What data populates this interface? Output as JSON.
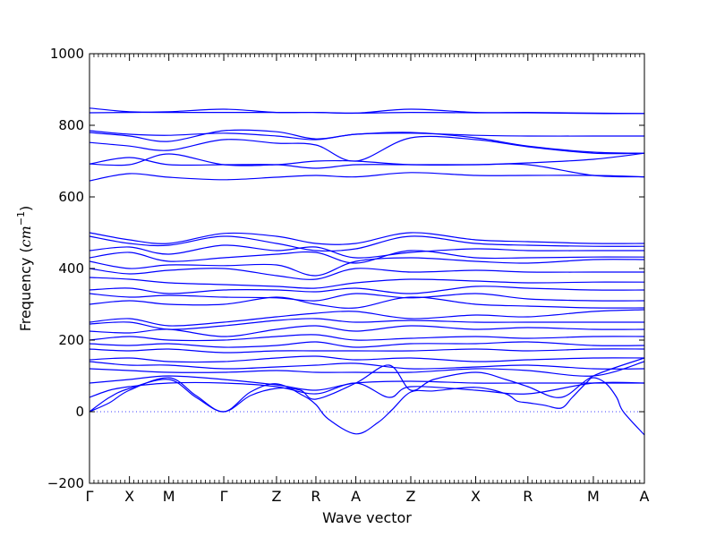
{
  "chart_data": {
    "type": "line",
    "title": "",
    "xlabel": "Wave vector",
    "ylabel": "Frequency",
    "ylabel_unit_main": "cm",
    "ylabel_unit_exp": "−1",
    "ylim": [
      -200,
      1000
    ],
    "yticks": [
      -200,
      0,
      200,
      400,
      600,
      800,
      1000
    ],
    "xlim": [
      0,
      1
    ],
    "xticks": [
      {
        "label": "Γ",
        "x": 0.0
      },
      {
        "label": "X",
        "x": 0.072
      },
      {
        "label": "M",
        "x": 0.143
      },
      {
        "label": "Γ",
        "x": 0.242
      },
      {
        "label": "Z",
        "x": 0.337
      },
      {
        "label": "R",
        "x": 0.408
      },
      {
        "label": "A",
        "x": 0.48
      },
      {
        "label": "Z",
        "x": 0.579
      },
      {
        "label": "X",
        "x": 0.696
      },
      {
        "label": "R",
        "x": 0.79
      },
      {
        "label": "M",
        "x": 0.908
      },
      {
        "label": "A",
        "x": 1.0
      }
    ],
    "zero_line": true,
    "grid": false,
    "series_color": "#0000ff",
    "series": [
      {
        "x": [
          0,
          0.072,
          0.143,
          0.242,
          0.337,
          0.408,
          0.48,
          0.579,
          0.696,
          0.79,
          0.908,
          1
        ],
        "values": [
          848,
          838,
          838,
          845,
          836,
          836,
          834,
          845,
          836,
          836,
          834,
          833
        ]
      },
      {
        "x": [
          0,
          0.072,
          0.143,
          0.242,
          0.337,
          0.408,
          0.48,
          0.579,
          0.696,
          0.79,
          0.908,
          1
        ],
        "values": [
          835,
          836,
          836,
          836,
          836,
          836,
          834,
          836,
          835,
          835,
          833,
          833
        ]
      },
      {
        "x": [
          0,
          0.072,
          0.143,
          0.242,
          0.337,
          0.408,
          0.48,
          0.579,
          0.696,
          0.79,
          0.908,
          1
        ],
        "values": [
          785,
          775,
          772,
          778,
          770,
          760,
          775,
          778,
          772,
          770,
          770,
          770
        ]
      },
      {
        "x": [
          0,
          0.072,
          0.143,
          0.242,
          0.337,
          0.408,
          0.48,
          0.579,
          0.696,
          0.79,
          0.908,
          1
        ],
        "values": [
          780,
          770,
          755,
          785,
          782,
          762,
          775,
          780,
          765,
          742,
          725,
          722
        ]
      },
      {
        "x": [
          0,
          0.072,
          0.143,
          0.242,
          0.337,
          0.408,
          0.48,
          0.579,
          0.696,
          0.79,
          0.908,
          1
        ],
        "values": [
          752,
          742,
          730,
          760,
          750,
          745,
          700,
          765,
          760,
          740,
          722,
          722
        ]
      },
      {
        "x": [
          0,
          0.072,
          0.143,
          0.242,
          0.337,
          0.408,
          0.48,
          0.579,
          0.696,
          0.79,
          0.908,
          1
        ],
        "values": [
          692,
          690,
          720,
          690,
          690,
          700,
          700,
          690,
          690,
          695,
          705,
          722
        ]
      },
      {
        "x": [
          0,
          0.072,
          0.143,
          0.242,
          0.337,
          0.408,
          0.48,
          0.579,
          0.696,
          0.79,
          0.908,
          1
        ],
        "values": [
          692,
          710,
          690,
          690,
          690,
          680,
          690,
          690,
          690,
          690,
          660,
          656
        ]
      },
      {
        "x": [
          0,
          0.072,
          0.143,
          0.242,
          0.337,
          0.408,
          0.48,
          0.579,
          0.696,
          0.79,
          0.908,
          1
        ],
        "values": [
          645,
          665,
          655,
          648,
          655,
          660,
          656,
          668,
          660,
          660,
          660,
          656
        ]
      },
      {
        "x": [
          0,
          0.072,
          0.143,
          0.242,
          0.337,
          0.408,
          0.48,
          0.579,
          0.696,
          0.79,
          0.908,
          1
        ],
        "values": [
          500,
          480,
          470,
          498,
          490,
          470,
          470,
          500,
          480,
          475,
          470,
          470
        ]
      },
      {
        "x": [
          0,
          0.072,
          0.143,
          0.242,
          0.337,
          0.408,
          0.48,
          0.579,
          0.696,
          0.79,
          0.908,
          1
        ],
        "values": [
          490,
          470,
          465,
          490,
          470,
          450,
          455,
          490,
          470,
          465,
          462,
          462
        ]
      },
      {
        "x": [
          0,
          0.072,
          0.143,
          0.242,
          0.337,
          0.408,
          0.48,
          0.579,
          0.696,
          0.79,
          0.908,
          1
        ],
        "values": [
          450,
          460,
          440,
          465,
          450,
          460,
          430,
          445,
          455,
          450,
          450,
          450
        ]
      },
      {
        "x": [
          0,
          0.072,
          0.143,
          0.242,
          0.337,
          0.408,
          0.48,
          0.579,
          0.696,
          0.79,
          0.908,
          1
        ],
        "values": [
          430,
          445,
          420,
          430,
          440,
          445,
          415,
          450,
          430,
          430,
          432,
          432
        ]
      },
      {
        "x": [
          0,
          0.072,
          0.143,
          0.242,
          0.337,
          0.408,
          0.48,
          0.579,
          0.696,
          0.79,
          0.908,
          1
        ],
        "values": [
          420,
          400,
          410,
          408,
          410,
          380,
          420,
          430,
          420,
          415,
          425,
          425
        ]
      },
      {
        "x": [
          0,
          0.072,
          0.143,
          0.242,
          0.337,
          0.408,
          0.48,
          0.579,
          0.696,
          0.79,
          0.908,
          1
        ],
        "values": [
          400,
          385,
          395,
          400,
          380,
          370,
          400,
          390,
          395,
          390,
          390,
          390
        ]
      },
      {
        "x": [
          0,
          0.072,
          0.143,
          0.242,
          0.337,
          0.408,
          0.48,
          0.579,
          0.696,
          0.79,
          0.908,
          1
        ],
        "values": [
          375,
          370,
          360,
          355,
          350,
          345,
          360,
          370,
          365,
          360,
          362,
          362
        ]
      },
      {
        "x": [
          0,
          0.072,
          0.143,
          0.242,
          0.337,
          0.408,
          0.48,
          0.579,
          0.696,
          0.79,
          0.908,
          1
        ],
        "values": [
          340,
          345,
          330,
          340,
          340,
          335,
          345,
          330,
          350,
          345,
          340,
          340
        ]
      },
      {
        "x": [
          0,
          0.072,
          0.143,
          0.242,
          0.337,
          0.408,
          0.48,
          0.579,
          0.696,
          0.79,
          0.908,
          1
        ],
        "values": [
          330,
          320,
          325,
          320,
          318,
          310,
          330,
          318,
          330,
          315,
          310,
          310
        ]
      },
      {
        "x": [
          0,
          0.072,
          0.143,
          0.242,
          0.337,
          0.408,
          0.48,
          0.579,
          0.696,
          0.79,
          0.908,
          1
        ],
        "values": [
          300,
          310,
          300,
          300,
          320,
          300,
          290,
          320,
          300,
          295,
          290,
          290
        ]
      },
      {
        "x": [
          0,
          0.072,
          0.143,
          0.242,
          0.337,
          0.408,
          0.48,
          0.579,
          0.696,
          0.79,
          0.908,
          1
        ],
        "values": [
          250,
          260,
          240,
          250,
          265,
          275,
          280,
          260,
          270,
          265,
          280,
          285
        ]
      },
      {
        "x": [
          0,
          0.072,
          0.143,
          0.242,
          0.337,
          0.408,
          0.48,
          0.579,
          0.696,
          0.79,
          0.908,
          1
        ],
        "values": [
          245,
          250,
          230,
          240,
          255,
          260,
          250,
          255,
          250,
          250,
          250,
          250
        ]
      },
      {
        "x": [
          0,
          0.072,
          0.143,
          0.242,
          0.337,
          0.408,
          0.48,
          0.579,
          0.696,
          0.79,
          0.908,
          1
        ],
        "values": [
          225,
          220,
          230,
          210,
          230,
          240,
          225,
          240,
          230,
          235,
          230,
          230
        ]
      },
      {
        "x": [
          0,
          0.072,
          0.143,
          0.242,
          0.337,
          0.408,
          0.48,
          0.579,
          0.696,
          0.79,
          0.908,
          1
        ],
        "values": [
          200,
          210,
          200,
          200,
          210,
          215,
          200,
          205,
          210,
          205,
          210,
          210
        ]
      },
      {
        "x": [
          0,
          0.072,
          0.143,
          0.242,
          0.337,
          0.408,
          0.48,
          0.579,
          0.696,
          0.79,
          0.908,
          1
        ],
        "values": [
          190,
          185,
          190,
          180,
          185,
          195,
          180,
          190,
          190,
          195,
          185,
          185
        ]
      },
      {
        "x": [
          0,
          0.072,
          0.143,
          0.242,
          0.337,
          0.408,
          0.48,
          0.579,
          0.696,
          0.79,
          0.908,
          1
        ],
        "values": [
          175,
          170,
          175,
          165,
          170,
          170,
          170,
          170,
          175,
          170,
          175,
          175
        ]
      },
      {
        "x": [
          0,
          0.072,
          0.143,
          0.242,
          0.337,
          0.408,
          0.48,
          0.579,
          0.696,
          0.79,
          0.908,
          1
        ],
        "values": [
          145,
          150,
          140,
          140,
          150,
          155,
          145,
          150,
          140,
          145,
          150,
          150
        ]
      },
      {
        "x": [
          0,
          0.072,
          0.143,
          0.242,
          0.337,
          0.408,
          0.48,
          0.579,
          0.696,
          0.79,
          0.908,
          1
        ],
        "values": [
          140,
          130,
          130,
          120,
          125,
          130,
          135,
          120,
          125,
          130,
          120,
          120
        ]
      },
      {
        "x": [
          0,
          0.072,
          0.143,
          0.242,
          0.337,
          0.408,
          0.48,
          0.579,
          0.696,
          0.79,
          0.908,
          1
        ],
        "values": [
          120,
          115,
          110,
          110,
          115,
          110,
          110,
          110,
          120,
          115,
          100,
          140
        ]
      },
      {
        "x": [
          0,
          0.072,
          0.143,
          0.242,
          0.337,
          0.408,
          0.48,
          0.579,
          0.696,
          0.79,
          0.908,
          1
        ],
        "values": [
          80,
          90,
          100,
          90,
          75,
          60,
          80,
          85,
          80,
          80,
          80,
          80
        ]
      },
      {
        "x": [
          0,
          0.036,
          0.072,
          0.143,
          0.242,
          0.337,
          0.408,
          0.48,
          0.54,
          0.579,
          0.696,
          0.79,
          0.908,
          1
        ],
        "values": [
          40,
          60,
          70,
          80,
          80,
          70,
          50,
          80,
          40,
          70,
          60,
          50,
          80,
          80
        ]
      },
      {
        "x": [
          0,
          0.036,
          0.072,
          0.143,
          0.192,
          0.242,
          0.29,
          0.337,
          0.38,
          0.408,
          0.48,
          0.54,
          0.579,
          0.62,
          0.696,
          0.75,
          0.79,
          0.85,
          0.908,
          1
        ],
        "values": [
          0,
          40,
          65,
          90,
          40,
          0,
          45,
          65,
          60,
          35,
          80,
          130,
          60,
          90,
          110,
          90,
          70,
          40,
          100,
          150
        ]
      },
      {
        "x": [
          0,
          0.036,
          0.072,
          0.143,
          0.192,
          0.242,
          0.29,
          0.337,
          0.385,
          0.408,
          0.43,
          0.48,
          0.52,
          0.545,
          0.579,
          0.62,
          0.696,
          0.75,
          0.77,
          0.79,
          0.82,
          0.85,
          0.87,
          0.895,
          0.908,
          0.93,
          0.95,
          0.962,
          1
        ],
        "values": [
          0,
          25,
          60,
          95,
          45,
          0,
          55,
          78,
          45,
          20,
          -20,
          -62,
          -30,
          5,
          55,
          58,
          68,
          50,
          30,
          25,
          18,
          10,
          40,
          80,
          95,
          80,
          40,
          0,
          -65
        ]
      }
    ]
  }
}
